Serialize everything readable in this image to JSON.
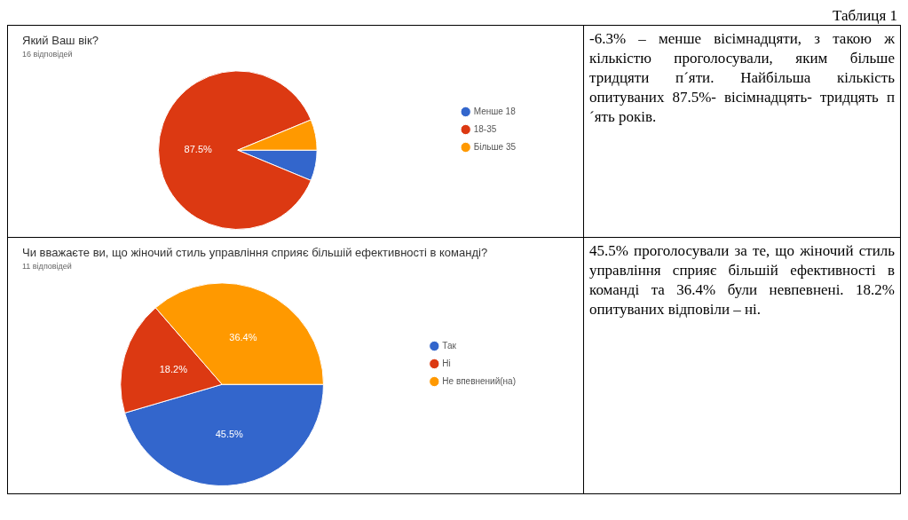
{
  "chart_data": [
    {
      "type": "other",
      "title": "Таблиця 1"
    },
    {
      "type": "pie",
      "title": "Який Ваш вік?",
      "subtitle": "16 відповідей",
      "categories": [
        "Менше 18",
        "18-35",
        "Більше 35"
      ],
      "values": [
        6.25,
        87.5,
        6.25
      ],
      "colors": [
        "#3366cc",
        "#dc3912",
        "#ff9900"
      ],
      "value_labels": [
        null,
        "87.5%",
        null
      ],
      "legend": "right"
    },
    {
      "type": "other",
      "annotations": [
        "-6.3% – менше вісімнадцяти, з такою ж кількістю проголосували, яким більше тридцяти п´яти. Найбільша кількість опитуваних 87.5%- вісімнадцять- тридцять п´ять років."
      ]
    },
    {
      "type": "pie",
      "title": "Чи вважаєте ви, що жіночий стиль управління сприяє більшій ефективності в команді?",
      "subtitle": "11 відповідей",
      "categories": [
        "Так",
        "Ні",
        "Не впевнений(на)"
      ],
      "values": [
        45.5,
        18.2,
        36.4
      ],
      "colors": [
        "#3366cc",
        "#dc3912",
        "#ff9900"
      ],
      "value_labels": [
        "45.5%",
        "18.2%",
        "36.4%"
      ],
      "legend": "right"
    },
    {
      "type": "other",
      "annotations": [
        "45.5% проголосували за те, що жіночий стиль управління сприяє більшій ефективності в команді та 36.4% були невпевнені. 18.2% опитуваних відповіли – ні."
      ]
    }
  ]
}
